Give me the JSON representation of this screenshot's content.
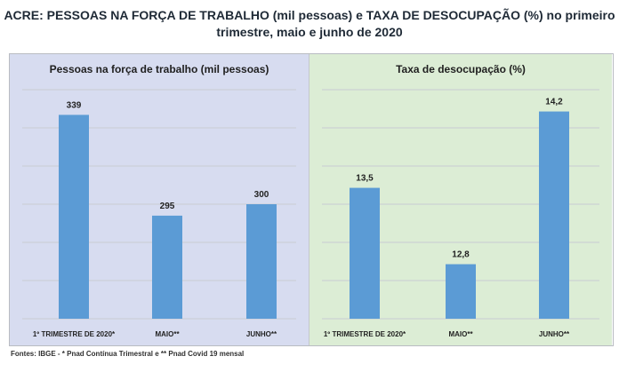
{
  "title_line1": "ACRE: PESSOAS NA FORÇA DE TRABALHO (mil pessoas) e TAXA DE DESOCUPAÇÃO (%) no primeiro",
  "title_line2": "trimestre, maio e junho de 2020",
  "footer": "Fontes:  IBGE - * Pnad Contínua Trimestral e ** Pnad Covid 19 mensal",
  "colors": {
    "bar": "#5b9bd5",
    "left_bg": "#d7dcf0",
    "right_bg": "#dcedd5"
  },
  "chart_data": [
    {
      "type": "bar",
      "title": "Pessoas na força de trabalho (mil pessoas)",
      "categories": [
        "1º TRIMESTRE DE 2020*",
        "MAIO**",
        "JUNHO**"
      ],
      "values": [
        339,
        295,
        300
      ],
      "value_labels": [
        "339",
        "295",
        "300"
      ],
      "ylim": [
        250,
        350
      ],
      "grid": true
    },
    {
      "type": "bar",
      "title": "Taxa de desocupação (%)",
      "categories": [
        "1º TRIMESTRE DE 2020*",
        "MAIO**",
        "JUNHO**"
      ],
      "values": [
        13.5,
        12.8,
        14.2
      ],
      "value_labels": [
        "13,5",
        "12,8",
        "14,2"
      ],
      "ylim": [
        12.3,
        14.4
      ],
      "grid": true
    }
  ]
}
